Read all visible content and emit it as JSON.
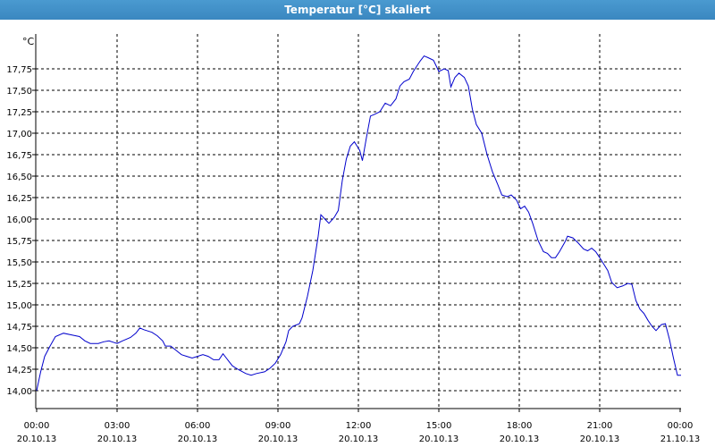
{
  "window": {
    "title": "Temperatur [°C] skaliert"
  },
  "chart_data": {
    "type": "line",
    "title": "Temperatur [°C] skaliert",
    "ylabel": "°C",
    "xlabel": "",
    "grid": true,
    "ylim": [
      13.8,
      18.0
    ],
    "xlim_hours": [
      0,
      24
    ],
    "colors": {
      "line": "#0000cc",
      "grid": "#000000",
      "axis": "#000000"
    },
    "yticks": [
      {
        "v": 14.0,
        "label": "14,00"
      },
      {
        "v": 14.25,
        "label": "14,25"
      },
      {
        "v": 14.5,
        "label": "14,50"
      },
      {
        "v": 14.75,
        "label": "14,75"
      },
      {
        "v": 15.0,
        "label": "15,00"
      },
      {
        "v": 15.25,
        "label": "15,25"
      },
      {
        "v": 15.5,
        "label": "15,50"
      },
      {
        "v": 15.75,
        "label": "15,75"
      },
      {
        "v": 16.0,
        "label": "16,00"
      },
      {
        "v": 16.25,
        "label": "16,25"
      },
      {
        "v": 16.5,
        "label": "16,50"
      },
      {
        "v": 16.75,
        "label": "16,75"
      },
      {
        "v": 17.0,
        "label": "17,00"
      },
      {
        "v": 17.25,
        "label": "17,25"
      },
      {
        "v": 17.5,
        "label": "17,50"
      },
      {
        "v": 17.75,
        "label": "17,75"
      }
    ],
    "xticks": [
      {
        "h": 0,
        "time": "00:00",
        "date": "20.10.13"
      },
      {
        "h": 3,
        "time": "03:00",
        "date": "20.10.13"
      },
      {
        "h": 6,
        "time": "06:00",
        "date": "20.10.13"
      },
      {
        "h": 9,
        "time": "09:00",
        "date": "20.10.13"
      },
      {
        "h": 12,
        "time": "12:00",
        "date": "20.10.13"
      },
      {
        "h": 15,
        "time": "15:00",
        "date": "20.10.13"
      },
      {
        "h": 18,
        "time": "18:00",
        "date": "20.10.13"
      },
      {
        "h": 21,
        "time": "21:00",
        "date": "20.10.13"
      },
      {
        "h": 24,
        "time": "00:00",
        "date": "21.10.13"
      }
    ],
    "series": [
      {
        "points": [
          [
            0.0,
            14.0
          ],
          [
            0.15,
            14.22
          ],
          [
            0.3,
            14.4
          ],
          [
            0.5,
            14.52
          ],
          [
            0.7,
            14.63
          ],
          [
            1.0,
            14.67
          ],
          [
            1.3,
            14.65
          ],
          [
            1.6,
            14.63
          ],
          [
            1.8,
            14.58
          ],
          [
            2.0,
            14.55
          ],
          [
            2.3,
            14.55
          ],
          [
            2.5,
            14.57
          ],
          [
            2.7,
            14.58
          ],
          [
            3.0,
            14.55
          ],
          [
            3.2,
            14.58
          ],
          [
            3.5,
            14.62
          ],
          [
            3.7,
            14.67
          ],
          [
            3.85,
            14.73
          ],
          [
            4.0,
            14.71
          ],
          [
            4.3,
            14.68
          ],
          [
            4.5,
            14.64
          ],
          [
            4.7,
            14.58
          ],
          [
            4.8,
            14.52
          ],
          [
            5.0,
            14.52
          ],
          [
            5.2,
            14.47
          ],
          [
            5.4,
            14.42
          ],
          [
            5.6,
            14.4
          ],
          [
            5.8,
            14.38
          ],
          [
            6.0,
            14.4
          ],
          [
            6.2,
            14.42
          ],
          [
            6.4,
            14.4
          ],
          [
            6.6,
            14.36
          ],
          [
            6.8,
            14.36
          ],
          [
            6.95,
            14.43
          ],
          [
            7.1,
            14.37
          ],
          [
            7.3,
            14.29
          ],
          [
            7.5,
            14.25
          ],
          [
            7.8,
            14.2
          ],
          [
            8.0,
            14.18
          ],
          [
            8.2,
            14.2
          ],
          [
            8.5,
            14.22
          ],
          [
            8.7,
            14.26
          ],
          [
            8.9,
            14.32
          ],
          [
            9.1,
            14.42
          ],
          [
            9.3,
            14.57
          ],
          [
            9.4,
            14.7
          ],
          [
            9.55,
            14.75
          ],
          [
            9.8,
            14.78
          ],
          [
            9.9,
            14.85
          ],
          [
            10.1,
            15.1
          ],
          [
            10.3,
            15.4
          ],
          [
            10.5,
            15.8
          ],
          [
            10.6,
            16.05
          ],
          [
            10.75,
            16.0
          ],
          [
            10.9,
            15.95
          ],
          [
            11.1,
            16.02
          ],
          [
            11.25,
            16.1
          ],
          [
            11.4,
            16.45
          ],
          [
            11.55,
            16.7
          ],
          [
            11.7,
            16.85
          ],
          [
            11.85,
            16.9
          ],
          [
            11.95,
            16.85
          ],
          [
            12.05,
            16.8
          ],
          [
            12.15,
            16.68
          ],
          [
            12.3,
            16.95
          ],
          [
            12.45,
            17.2
          ],
          [
            12.6,
            17.22
          ],
          [
            12.8,
            17.25
          ],
          [
            13.0,
            17.35
          ],
          [
            13.2,
            17.32
          ],
          [
            13.4,
            17.4
          ],
          [
            13.55,
            17.55
          ],
          [
            13.7,
            17.6
          ],
          [
            13.9,
            17.63
          ],
          [
            14.05,
            17.72
          ],
          [
            14.3,
            17.84
          ],
          [
            14.45,
            17.9
          ],
          [
            14.6,
            17.88
          ],
          [
            14.8,
            17.85
          ],
          [
            15.0,
            17.72
          ],
          [
            15.2,
            17.75
          ],
          [
            15.35,
            17.73
          ],
          [
            15.45,
            17.54
          ],
          [
            15.6,
            17.65
          ],
          [
            15.75,
            17.7
          ],
          [
            15.95,
            17.65
          ],
          [
            16.1,
            17.55
          ],
          [
            16.25,
            17.28
          ],
          [
            16.4,
            17.1
          ],
          [
            16.6,
            17.0
          ],
          [
            16.8,
            16.75
          ],
          [
            17.0,
            16.55
          ],
          [
            17.2,
            16.4
          ],
          [
            17.35,
            16.28
          ],
          [
            17.55,
            16.26
          ],
          [
            17.7,
            16.28
          ],
          [
            17.9,
            16.22
          ],
          [
            18.05,
            16.12
          ],
          [
            18.2,
            16.15
          ],
          [
            18.35,
            16.08
          ],
          [
            18.5,
            15.95
          ],
          [
            18.7,
            15.75
          ],
          [
            18.9,
            15.62
          ],
          [
            19.05,
            15.6
          ],
          [
            19.2,
            15.55
          ],
          [
            19.35,
            15.55
          ],
          [
            19.5,
            15.62
          ],
          [
            19.7,
            15.73
          ],
          [
            19.8,
            15.8
          ],
          [
            20.0,
            15.78
          ],
          [
            20.2,
            15.72
          ],
          [
            20.4,
            15.65
          ],
          [
            20.55,
            15.63
          ],
          [
            20.7,
            15.66
          ],
          [
            20.85,
            15.62
          ],
          [
            21.0,
            15.55
          ],
          [
            21.1,
            15.5
          ],
          [
            21.3,
            15.4
          ],
          [
            21.45,
            15.26
          ],
          [
            21.65,
            15.2
          ],
          [
            21.85,
            15.22
          ],
          [
            22.05,
            15.25
          ],
          [
            22.2,
            15.24
          ],
          [
            22.35,
            15.05
          ],
          [
            22.5,
            14.95
          ],
          [
            22.65,
            14.9
          ],
          [
            22.8,
            14.82
          ],
          [
            22.95,
            14.75
          ],
          [
            23.1,
            14.7
          ],
          [
            23.3,
            14.77
          ],
          [
            23.45,
            14.78
          ],
          [
            23.6,
            14.6
          ],
          [
            23.75,
            14.38
          ],
          [
            23.9,
            14.18
          ],
          [
            24.05,
            14.18
          ],
          [
            24.2,
            14.19
          ],
          [
            24.35,
            14.36
          ],
          [
            24.5,
            14.27
          ],
          [
            24.65,
            14.25
          ]
        ]
      }
    ]
  }
}
